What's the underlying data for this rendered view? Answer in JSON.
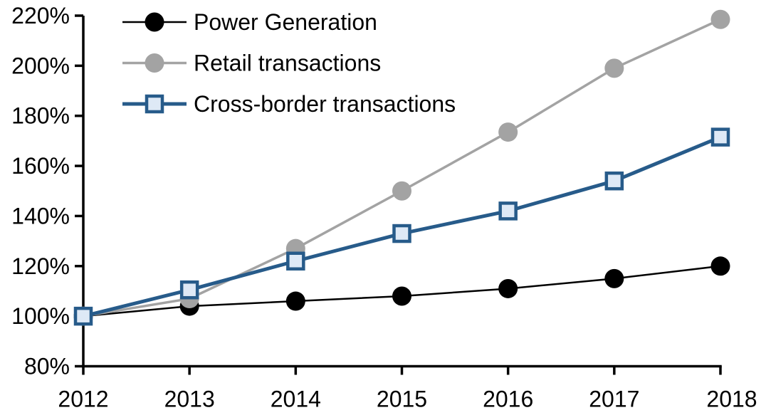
{
  "chart_data": {
    "type": "line",
    "title": "",
    "xlabel": "",
    "ylabel": "",
    "x": [
      "2012",
      "2013",
      "2014",
      "2015",
      "2016",
      "2017",
      "2018"
    ],
    "series": [
      {
        "name": "Power Generation",
        "values": [
          100,
          104,
          106,
          108,
          111,
          115,
          120
        ],
        "color": "#000000",
        "marker": "circle",
        "marker_fill": "#000000",
        "line_width": 2.5
      },
      {
        "name": "Retail transactions",
        "values": [
          100,
          107,
          127,
          150,
          173.5,
          199,
          218.5
        ],
        "color": "#A3A3A3",
        "marker": "circle",
        "marker_fill": "#A3A3A3",
        "line_width": 3.5
      },
      {
        "name": "Cross-border transactions",
        "values": [
          100,
          110.5,
          122,
          133,
          142,
          154,
          171.5
        ],
        "color": "#275B8A",
        "marker": "square",
        "marker_fill": "#DEE9F6",
        "line_width": 5
      }
    ],
    "ylim": [
      80,
      220
    ],
    "ytick_step": 20,
    "ytick_suffix": "%",
    "grid": false,
    "legend_position": "top-left",
    "axis_color": "#000000"
  }
}
